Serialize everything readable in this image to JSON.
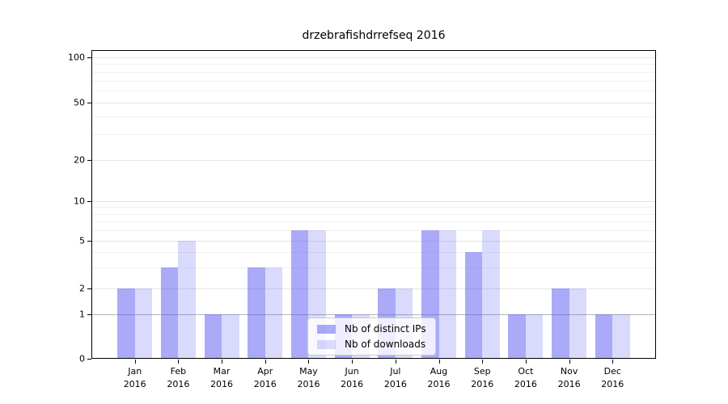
{
  "chart_data": {
    "type": "bar",
    "title": "drzebrafishdrrefseq 2016",
    "categories": [
      "Jan 2016",
      "Feb 2016",
      "Mar 2016",
      "Apr 2016",
      "May 2016",
      "Jun 2016",
      "Jul 2016",
      "Aug 2016",
      "Sep 2016",
      "Oct 2016",
      "Nov 2016",
      "Dec 2016"
    ],
    "series": [
      {
        "name": "Nb of distinct IPs",
        "color": "rgba(85,85,244,0.50)",
        "values": [
          2,
          3,
          1,
          3,
          6,
          1,
          2,
          6,
          4,
          1,
          2,
          1
        ]
      },
      {
        "name": "Nb of downloads",
        "color": "rgba(85,85,244,0.22)",
        "values": [
          2,
          5,
          1,
          3,
          6,
          1,
          2,
          6,
          6,
          1,
          2,
          1
        ]
      }
    ],
    "xlabel": "",
    "ylabel": "",
    "yscale": "log-like (0, then log 1..100)",
    "y_ticks": [
      0,
      1,
      2,
      5,
      10,
      20,
      50,
      100
    ],
    "y_minor_gridlines": [
      3,
      4,
      6,
      7,
      8,
      9,
      30,
      40,
      60,
      70,
      80,
      90
    ],
    "ylim": [
      0,
      112
    ],
    "grid": "horizontal",
    "legend_position": "lower center",
    "colors": {
      "bar_dark_hex": "#aaaaf9",
      "bar_light_hex": "#d9d9f9",
      "grid_major": "#e4e4e4",
      "grid_minor": "#f0f0f0",
      "grid_baseline_one": "#b4b4b4",
      "axis": "#000000"
    }
  }
}
